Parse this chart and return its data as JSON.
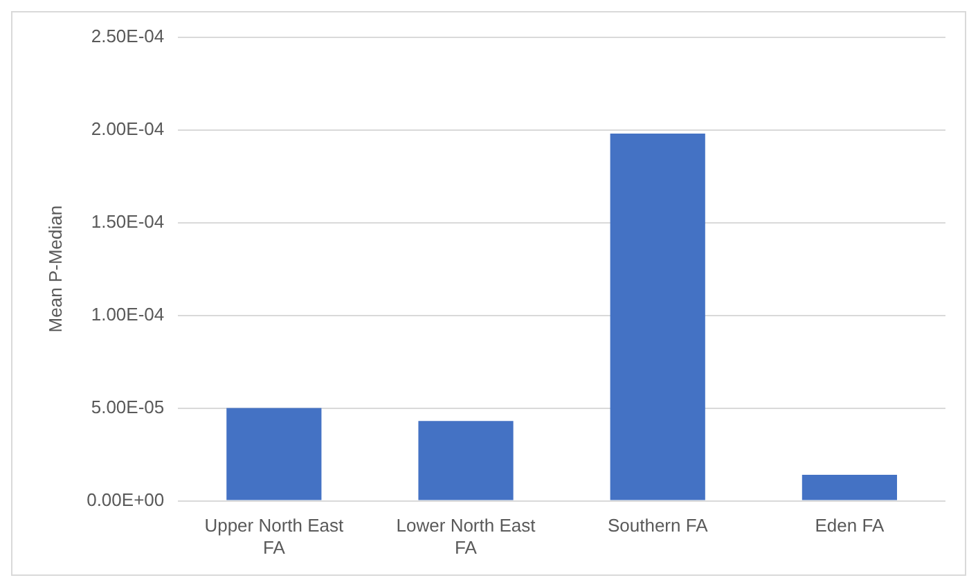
{
  "chart_data": {
    "type": "bar",
    "ylabel": "Mean P-Median",
    "categories": [
      "Upper North East FA",
      "Lower North East FA",
      "Southern FA",
      "Eden FA"
    ],
    "values": [
      5e-05,
      4.3e-05,
      0.000198,
      1.4e-05
    ],
    "color": "#4472c4",
    "ylim": [
      0,
      0.00025
    ],
    "yticks": [
      {
        "value": 0,
        "label": "0.00E+00"
      },
      {
        "value": 5e-05,
        "label": "5.00E-05"
      },
      {
        "value": 0.0001,
        "label": "1.00E-04"
      },
      {
        "value": 0.00015,
        "label": "1.50E-04"
      },
      {
        "value": 0.0002,
        "label": "2.00E-04"
      },
      {
        "value": 0.00025,
        "label": "2.50E-04"
      }
    ],
    "grid": "y",
    "legend": false
  }
}
